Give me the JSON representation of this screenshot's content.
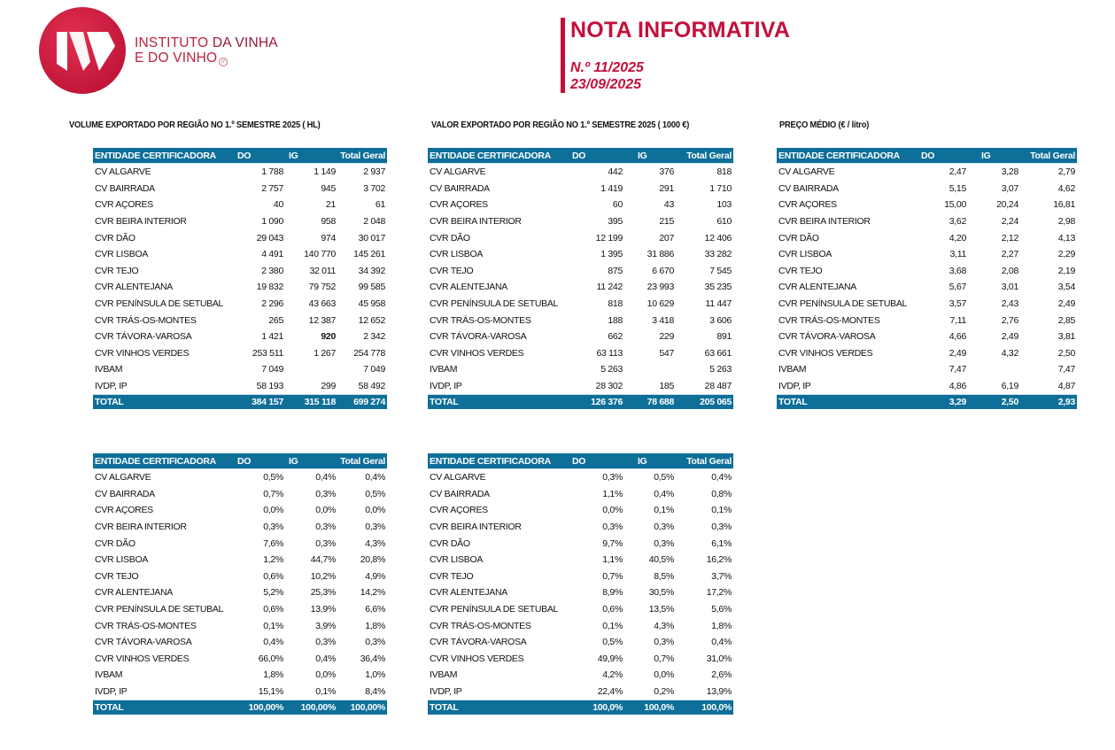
{
  "header": {
    "logo_text_line1_a": "INSTITUTO ",
    "logo_text_line1_b": "DA VINHA",
    "logo_text_line2": "E DO VINHO",
    "logo_ip": "IP",
    "title": "NOTA INFORMATIVA",
    "number": "N.º 11/2025",
    "date": "23/09/2025",
    "brand_color": "#c3103c"
  },
  "sections": {
    "volume": "VOLUME EXPORTADO POR REGIÃO NO 1.º SEMESTRE 2025 ( HL)",
    "valor": "VALOR EXPORTADO POR REGIÃO NO 1.º SEMESTRE 2025 ( 1000 €)",
    "preco": "PREÇO MÉDIO (€ / litro)"
  },
  "table_header_color": "#0e6f99",
  "columns": [
    "ENTIDADE CERTIFICADORA",
    "DO",
    "IG",
    "Total Geral"
  ],
  "tables": {
    "volume": {
      "rows": [
        [
          "CV ALGARVE",
          "1 788",
          "1 149",
          "2 937"
        ],
        [
          "CV BAIRRADA",
          "2 757",
          "945",
          "3 702"
        ],
        [
          "CVR AÇORES",
          "40",
          "21",
          "61"
        ],
        [
          "CVR BEIRA INTERIOR",
          "1 090",
          "958",
          "2 048"
        ],
        [
          "CVR DÃO",
          "29 043",
          "974",
          "30 017"
        ],
        [
          "CVR LISBOA",
          "4 491",
          "140 770",
          "145 261"
        ],
        [
          "CVR TEJO",
          "2 380",
          "32 011",
          "34 392"
        ],
        [
          "CVR ALENTEJANA",
          "19 832",
          "79 752",
          "99 585"
        ],
        [
          "CVR PENÍNSULA DE SETUBAL",
          "2 296",
          "43 663",
          "45 958"
        ],
        [
          "CVR TRÁS-OS-MONTES",
          "265",
          "12 387",
          "12 652"
        ],
        [
          "CVR TÁVORA-VAROSA",
          "1 421",
          "920",
          "2 342"
        ],
        [
          "CVR VINHOS VERDES",
          "253 511",
          "1 267",
          "254 778"
        ],
        [
          "IVBAM",
          "7 049",
          "",
          "7 049"
        ],
        [
          "IVDP, IP",
          "58 193",
          "299",
          "58 492"
        ]
      ],
      "total": [
        "TOTAL",
        "384 157",
        "315 118",
        "699 274"
      ]
    },
    "valor": {
      "rows": [
        [
          "CV ALGARVE",
          "442",
          "376",
          "818"
        ],
        [
          "CV BAIRRADA",
          "1 419",
          "291",
          "1 710"
        ],
        [
          "CVR AÇORES",
          "60",
          "43",
          "103"
        ],
        [
          "CVR BEIRA INTERIOR",
          "395",
          "215",
          "610"
        ],
        [
          "CVR DÃO",
          "12 199",
          "207",
          "12 406"
        ],
        [
          "CVR LISBOA",
          "1 395",
          "31 886",
          "33 282"
        ],
        [
          "CVR TEJO",
          "875",
          "6 670",
          "7 545"
        ],
        [
          "CVR ALENTEJANA",
          "11 242",
          "23 993",
          "35 235"
        ],
        [
          "CVR PENÍNSULA DE SETUBAL",
          "818",
          "10 629",
          "11 447"
        ],
        [
          "CVR TRÁS-OS-MONTES",
          "188",
          "3 418",
          "3 606"
        ],
        [
          "CVR TÁVORA-VAROSA",
          "662",
          "229",
          "891"
        ],
        [
          "CVR VINHOS VERDES",
          "63 113",
          "547",
          "63 661"
        ],
        [
          "IVBAM",
          "5 263",
          "",
          "5 263"
        ],
        [
          "IVDP, IP",
          "28 302",
          "185",
          "28 487"
        ]
      ],
      "total": [
        "TOTAL",
        "126 376",
        "78 688",
        "205 065"
      ]
    },
    "preco": {
      "rows": [
        [
          "CV ALGARVE",
          "2,47",
          "3,28",
          "2,79"
        ],
        [
          "CV BAIRRADA",
          "5,15",
          "3,07",
          "4,62"
        ],
        [
          "CVR AÇORES",
          "15,00",
          "20,24",
          "16,81"
        ],
        [
          "CVR BEIRA INTERIOR",
          "3,62",
          "2,24",
          "2,98"
        ],
        [
          "CVR DÃO",
          "4,20",
          "2,12",
          "4,13"
        ],
        [
          "CVR LISBOA",
          "3,11",
          "2,27",
          "2,29"
        ],
        [
          "CVR TEJO",
          "3,68",
          "2,08",
          "2,19"
        ],
        [
          "CVR ALENTEJANA",
          "5,67",
          "3,01",
          "3,54"
        ],
        [
          "CVR PENÍNSULA DE SETUBAL",
          "3,57",
          "2,43",
          "2,49"
        ],
        [
          "CVR TRÁS-OS-MONTES",
          "7,11",
          "2,76",
          "2,85"
        ],
        [
          "CVR TÁVORA-VAROSA",
          "4,66",
          "2,49",
          "3,81"
        ],
        [
          "CVR VINHOS VERDES",
          "2,49",
          "4,32",
          "2,50"
        ],
        [
          "IVBAM",
          "7,47",
          "",
          "7,47"
        ],
        [
          "IVDP, IP",
          "4,86",
          "6,19",
          "4,87"
        ]
      ],
      "total": [
        "TOTAL",
        "3,29",
        "2,50",
        "2,93"
      ]
    },
    "volume_pct": {
      "rows": [
        [
          "CV ALGARVE",
          "0,5%",
          "0,4%",
          "0,4%"
        ],
        [
          "CV BAIRRADA",
          "0,7%",
          "0,3%",
          "0,5%"
        ],
        [
          "CVR AÇORES",
          "0,0%",
          "0,0%",
          "0,0%"
        ],
        [
          "CVR BEIRA INTERIOR",
          "0,3%",
          "0,3%",
          "0,3%"
        ],
        [
          "CVR DÃO",
          "7,6%",
          "0,3%",
          "4,3%"
        ],
        [
          "CVR LISBOA",
          "1,2%",
          "44,7%",
          "20,8%"
        ],
        [
          "CVR TEJO",
          "0,6%",
          "10,2%",
          "4,9%"
        ],
        [
          "CVR ALENTEJANA",
          "5,2%",
          "25,3%",
          "14,2%"
        ],
        [
          "CVR PENÍNSULA DE SETUBAL",
          "0,6%",
          "13,9%",
          "6,6%"
        ],
        [
          "CVR TRÁS-OS-MONTES",
          "0,1%",
          "3,9%",
          "1,8%"
        ],
        [
          "CVR TÁVORA-VAROSA",
          "0,4%",
          "0,3%",
          "0,3%"
        ],
        [
          "CVR VINHOS VERDES",
          "66,0%",
          "0,4%",
          "36,4%"
        ],
        [
          "IVBAM",
          "1,8%",
          "0,0%",
          "1,0%"
        ],
        [
          "IVDP, IP",
          "15,1%",
          "0,1%",
          "8,4%"
        ]
      ],
      "total": [
        "TOTAL",
        "100,00%",
        "100,00%",
        "100,00%"
      ]
    },
    "valor_pct": {
      "rows": [
        [
          "CV ALGARVE",
          "0,3%",
          "0,5%",
          "0,4%"
        ],
        [
          "CV BAIRRADA",
          "1,1%",
          "0,4%",
          "0,8%"
        ],
        [
          "CVR AÇORES",
          "0,0%",
          "0,1%",
          "0,1%"
        ],
        [
          "CVR BEIRA INTERIOR",
          "0,3%",
          "0,3%",
          "0,3%"
        ],
        [
          "CVR DÃO",
          "9,7%",
          "0,3%",
          "6,1%"
        ],
        [
          "CVR LISBOA",
          "1,1%",
          "40,5%",
          "16,2%"
        ],
        [
          "CVR TEJO",
          "0,7%",
          "8,5%",
          "3,7%"
        ],
        [
          "CVR ALENTEJANA",
          "8,9%",
          "30,5%",
          "17,2%"
        ],
        [
          "CVR PENÍNSULA DE SETUBAL",
          "0,6%",
          "13,5%",
          "5,6%"
        ],
        [
          "CVR TRÁS-OS-MONTES",
          "0,1%",
          "4,3%",
          "1,8%"
        ],
        [
          "CVR TÁVORA-VAROSA",
          "0,5%",
          "0,3%",
          "0,4%"
        ],
        [
          "CVR VINHOS VERDES",
          "49,9%",
          "0,7%",
          "31,0%"
        ],
        [
          "IVBAM",
          "4,2%",
          "0,0%",
          "2,6%"
        ],
        [
          "IVDP, IP",
          "22,4%",
          "0,2%",
          "13,9%"
        ]
      ],
      "total": [
        "TOTAL",
        "100,0%",
        "100,0%",
        "100,0%"
      ]
    }
  }
}
